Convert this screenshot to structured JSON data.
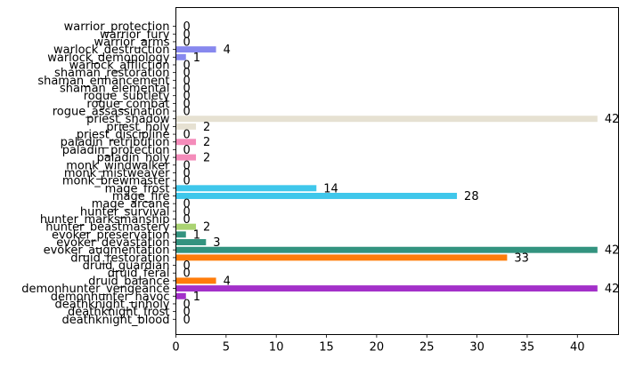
{
  "chart_data": {
    "type": "bar",
    "orientation": "horizontal",
    "title": "",
    "xlabel": "",
    "ylabel": "",
    "xlim": [
      0,
      44.1
    ],
    "xticks": [
      0,
      5,
      10,
      15,
      20,
      25,
      30,
      35,
      40
    ],
    "grid": false,
    "legend": "none",
    "categories": [
      "deathknight_blood",
      "deathknight_frost",
      "deathknight_unholy",
      "demonhunter_havoc",
      "demonhunter_vengeance",
      "druid_balance",
      "druid_feral",
      "druid_guardian",
      "druid_restoration",
      "evoker_augmentation",
      "evoker_devastation",
      "evoker_preservation",
      "hunter_beastmastery",
      "hunter_marksmanship",
      "hunter_survival",
      "mage_arcane",
      "mage_fire",
      "mage_frost",
      "monk_brewmaster",
      "monk_mistweaver",
      "monk_windwalker",
      "paladin_holy",
      "paladin_protection",
      "paladin_retribution",
      "priest_discipline",
      "priest_holy",
      "priest_shadow",
      "rogue_assassination",
      "rogue_combat",
      "rogue_subtlety",
      "shaman_elemental",
      "shaman_enhancement",
      "shaman_restoration",
      "warlock_affliction",
      "warlock_demonology",
      "warlock_destruction",
      "warrior_arms",
      "warrior_fury",
      "warrior_protection"
    ],
    "values": [
      0,
      0,
      0,
      1,
      42,
      4,
      0,
      0,
      33,
      42,
      3,
      1,
      2,
      0,
      0,
      0,
      28,
      14,
      0,
      0,
      0,
      2,
      0,
      2,
      0,
      2,
      42,
      0,
      0,
      0,
      0,
      0,
      0,
      0,
      1,
      4,
      0,
      0,
      0
    ],
    "colors": [
      "#c41e3a",
      "#c41e3a",
      "#c41e3a",
      "#a330c9",
      "#a330c9",
      "#ff7c0a",
      "#ff7c0a",
      "#ff7c0a",
      "#ff7c0a",
      "#33937f",
      "#33937f",
      "#33937f",
      "#aad372",
      "#aad372",
      "#aad372",
      "#3fc7eb",
      "#3fc7eb",
      "#3fc7eb",
      "#00ff98",
      "#00ff98",
      "#00ff98",
      "#f48cba",
      "#f48cba",
      "#f48cba",
      "#e6e1d2",
      "#e6e1d2",
      "#e6e1d2",
      "#fff468",
      "#fff468",
      "#fff468",
      "#0070dd",
      "#0070dd",
      "#0070dd",
      "#8788ee",
      "#8788ee",
      "#8788ee",
      "#c69b6d",
      "#c69b6d",
      "#c69b6d"
    ]
  }
}
